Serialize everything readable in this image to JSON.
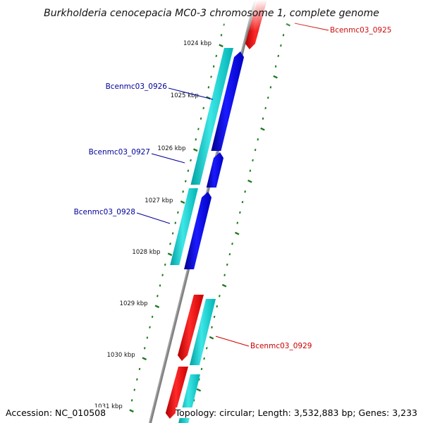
{
  "title": "Burkholderia cenocepacia MC0-3 chromosome 1, complete genome",
  "accession": "Accession: NC_010508",
  "topology": "Topology: circular; Length: 3,532,883 bp; Genes: 3,233",
  "colors": {
    "forward_cds": "#ff0000",
    "reverse_cds": "#0000ee",
    "gene": "#00c8c8",
    "backbone": "#808080",
    "tick": "#1e7a1e",
    "forward_label": "#cc0000",
    "reverse_label": "#000099"
  },
  "kbp_labels": [
    "1024 kbp",
    "1025 kbp",
    "1026 kbp",
    "1027 kbp",
    "1028 kbp",
    "1029 kbp",
    "1030 kbp",
    "1031 kbp"
  ],
  "genes": [
    {
      "name": "Bcenmc03_0925",
      "strand": "forward"
    },
    {
      "name": "Bcenmc03_0926",
      "strand": "reverse"
    },
    {
      "name": "Bcenmc03_0927",
      "strand": "reverse"
    },
    {
      "name": "Bcenmc03_0928",
      "strand": "reverse"
    },
    {
      "name": "Bcenmc03_0929",
      "strand": "forward"
    }
  ]
}
